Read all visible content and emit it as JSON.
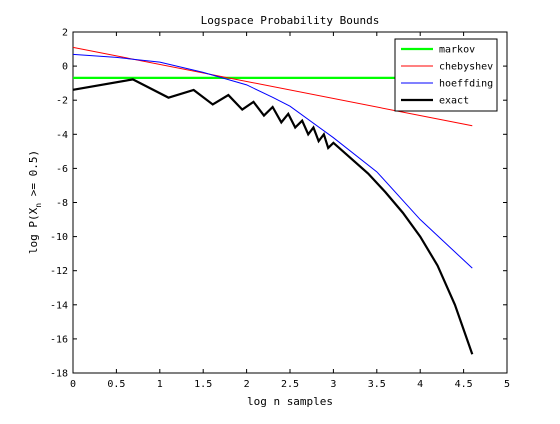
{
  "chart_data": {
    "type": "line",
    "title": "Logspace Probability Bounds",
    "xlabel": "log n samples",
    "ylabel": "log P(X_n >= 0.5)",
    "ylabel_main": "log P(X",
    "ylabel_sub": "n",
    "ylabel_tail": " >= 0.5)",
    "xlim": [
      0,
      5
    ],
    "ylim": [
      -18,
      2
    ],
    "xticks": [
      "0",
      "0.5",
      "1",
      "1.5",
      "2",
      "2.5",
      "3",
      "3.5",
      "4",
      "4.5",
      "5"
    ],
    "yticks": [
      "2",
      "0",
      "-2",
      "-4",
      "-6",
      "-8",
      "-10",
      "-12",
      "-14",
      "-16",
      "-18"
    ],
    "grid": false,
    "legend_position": "top-right",
    "series": [
      {
        "name": "markov",
        "color": "#00ff00",
        "style": "thick",
        "x": [
          0,
          4.6
        ],
        "y": [
          -0.69,
          -0.69
        ]
      },
      {
        "name": "chebyshev",
        "color": "#ff0000",
        "style": "thin",
        "x": [
          0,
          4.6
        ],
        "y": [
          1.1,
          -3.5
        ]
      },
      {
        "name": "hoeffding",
        "color": "#0000ff",
        "style": "thin",
        "x": [
          0,
          0.5,
          1.0,
          1.5,
          2.0,
          2.3,
          2.5,
          3.0,
          3.5,
          4.0,
          4.6
        ],
        "y": [
          0.69,
          0.51,
          0.23,
          -0.37,
          -1.1,
          -1.83,
          -2.35,
          -4.2,
          -6.2,
          -9.0,
          -11.85
        ]
      },
      {
        "name": "exact",
        "color": "#000000",
        "style": "thick",
        "x": [
          0,
          0.69,
          1.1,
          1.39,
          1.61,
          1.79,
          1.95,
          2.08,
          2.2,
          2.3,
          2.4,
          2.48,
          2.56,
          2.64,
          2.71,
          2.77,
          2.83,
          2.89,
          2.94,
          3.0,
          3.2,
          3.4,
          3.6,
          3.8,
          4.0,
          4.2,
          4.4,
          4.6
        ],
        "y": [
          -1.39,
          -0.78,
          -1.85,
          -1.4,
          -2.25,
          -1.7,
          -2.55,
          -2.1,
          -2.9,
          -2.4,
          -3.3,
          -2.8,
          -3.6,
          -3.2,
          -4.0,
          -3.6,
          -4.4,
          -4.0,
          -4.8,
          -4.5,
          -5.4,
          -6.3,
          -7.4,
          -8.6,
          -10.0,
          -11.7,
          -14.0,
          -16.9
        ]
      }
    ]
  }
}
